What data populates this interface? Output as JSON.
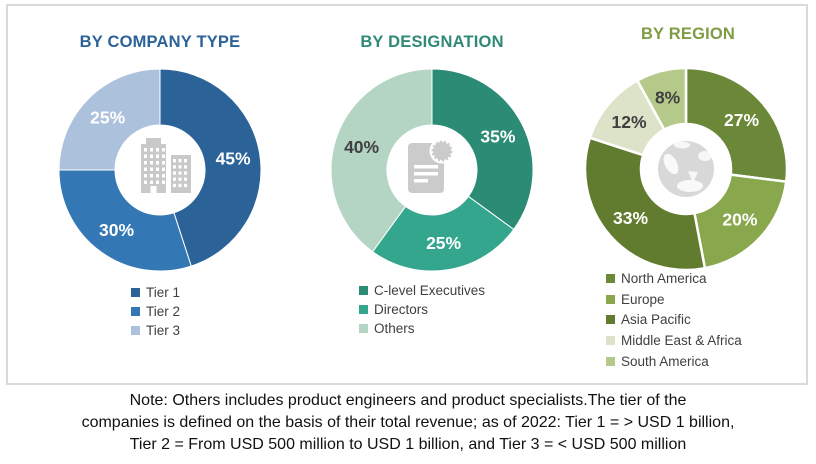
{
  "figure": {
    "note_lines": [
      "Note: Others includes product engineers and product specialists.The tier of the",
      "companies is defined on the basis of their total revenue; as of 2022: Tier 1 = > USD 1 billion,",
      "Tier 2 = From USD 500 million to USD 1 billion, and Tier 3 = < USD 500 million"
    ]
  },
  "chart_data": [
    {
      "type": "donut",
      "title": "BY COMPANY TYPE",
      "title_color": "#2B6399",
      "center_icon": "buildings-icon",
      "icon_color": "#c9c9c9",
      "separator_width": 1,
      "legend_position": "bottom-left",
      "slices": [
        {
          "label": "Tier 1",
          "value": 45,
          "color": "#2B6399",
          "label_color": "#FFFFFF"
        },
        {
          "label": "Tier 2",
          "value": 30,
          "color": "#3377B4",
          "label_color": "#FFFFFF"
        },
        {
          "label": "Tier 3",
          "value": 25,
          "color": "#ACC1DC",
          "label_color": "#FFFFFF"
        }
      ]
    },
    {
      "type": "donut",
      "title": "BY DESIGNATION",
      "title_color": "#2F8A75",
      "center_icon": "document-badge-icon",
      "icon_color": "#cbcbcb",
      "separator_width": 1,
      "legend_position": "bottom-left",
      "slices": [
        {
          "label": "C-level Executives",
          "value": 35,
          "color": "#2B8B74",
          "label_color": "#FFFFFF"
        },
        {
          "label": "Directors",
          "value": 25,
          "color": "#35A68E",
          "label_color": "#FFFFFF"
        },
        {
          "label": "Others",
          "value": 40,
          "color": "#B4D4C4",
          "label_color": "#404040"
        }
      ]
    },
    {
      "type": "donut",
      "title": "BY REGION",
      "title_color": "#7F9C44",
      "center_icon": "globe-icon",
      "icon_color": "#d8d8d8",
      "separator_width": 2.5,
      "legend_position": "bottom-left",
      "slices": [
        {
          "label": "North America",
          "value": 27,
          "color": "#6A8838",
          "label_color": "#FFFFFF"
        },
        {
          "label": "Europe",
          "value": 20,
          "color": "#89A74C",
          "label_color": "#FFFFFF"
        },
        {
          "label": "Asia Pacific",
          "value": 33,
          "color": "#617C2F",
          "label_color": "#FFFFFF"
        },
        {
          "label": "Middle East & Africa",
          "value": 12,
          "color": "#DDE3C8",
          "label_color": "#404040"
        },
        {
          "label": "South America",
          "value": 8,
          "color": "#B5C98B",
          "label_color": "#404040"
        }
      ]
    }
  ]
}
